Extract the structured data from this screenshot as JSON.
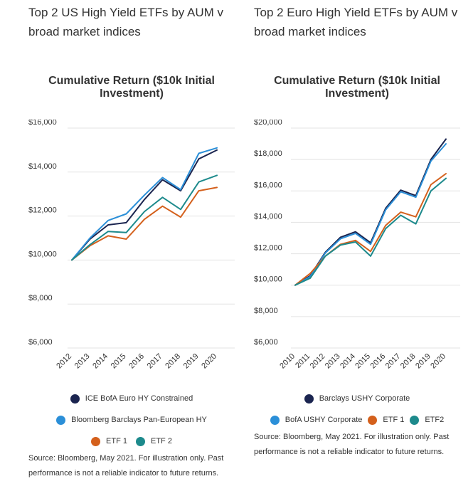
{
  "left": {
    "heading": "Top 2 US High Yield ETFs by AUM v broad market indices",
    "source_note": "Source: Bloomberg, May 2021. For illustration only. Past performance is not a reliable indicator to future returns."
  },
  "right": {
    "heading": "Top 2 Euro High Yield ETFs by AUM v broad market indices",
    "source_note": "Source: Bloomberg, May 2021. For illustration only. Past performance is not a reliable indicator to future returns."
  },
  "chart_data": [
    {
      "type": "line",
      "title": "Cumulative Return ($10k Initial Investment)",
      "xlabel": "",
      "ylabel": "",
      "x": [
        "2012",
        "2013",
        "2014",
        "2015",
        "2016",
        "2017",
        "2018",
        "2019",
        "2020"
      ],
      "ylim": [
        6000,
        16000
      ],
      "yticks": [
        6000,
        8000,
        10000,
        12000,
        14000,
        16000
      ],
      "ytick_labels": [
        "$6,000",
        "$8,000",
        "$10,000",
        "$12,000",
        "$14,000",
        "$16,000"
      ],
      "grid": true,
      "legend_position": "bottom",
      "series": [
        {
          "name": "ICE BofA Euro HY Constrained",
          "color": "#1b2550",
          "values": [
            10000,
            10950,
            11600,
            11700,
            12750,
            13650,
            13150,
            14600,
            15000
          ]
        },
        {
          "name": "Bloomberg Barclays Pan-European HY",
          "color": "#2b8fd8",
          "values": [
            10000,
            11000,
            11800,
            12100,
            12950,
            13750,
            13200,
            14850,
            15100
          ]
        },
        {
          "name": "ETF 1",
          "color": "#d4601c",
          "values": [
            10000,
            10650,
            11100,
            10950,
            11850,
            12450,
            11950,
            13150,
            13300
          ]
        },
        {
          "name": "ETF 2",
          "color": "#1d8a8c",
          "values": [
            10000,
            10700,
            11300,
            11250,
            12200,
            12850,
            12300,
            13550,
            13850
          ]
        }
      ]
    },
    {
      "type": "line",
      "title": "Cumulative Return ($10k Initial Investment)",
      "xlabel": "",
      "ylabel": "",
      "x": [
        "2010",
        "2011",
        "2012",
        "2013",
        "2014",
        "2015",
        "2016",
        "2017",
        "2018",
        "2019",
        "2020"
      ],
      "ylim": [
        6000,
        20000
      ],
      "yticks": [
        6000,
        8000,
        10000,
        12000,
        14000,
        16000,
        18000,
        20000
      ],
      "ytick_labels": [
        "$6,000",
        "$8,000",
        "$10,000",
        "$12,000",
        "$14,000",
        "$16,000",
        "$18,000",
        "$20,000"
      ],
      "grid": true,
      "legend_position": "bottom",
      "series": [
        {
          "name": "Barclays USHY Corporate",
          "color": "#1b2550",
          "values": [
            10000,
            10600,
            12100,
            13050,
            13400,
            12700,
            14900,
            16050,
            15700,
            18000,
            19300
          ]
        },
        {
          "name": "BofA USHY Corporate",
          "color": "#2b8fd8",
          "values": [
            10000,
            10550,
            12050,
            12950,
            13300,
            12600,
            14800,
            15950,
            15600,
            17900,
            19000
          ]
        },
        {
          "name": "ETF 1",
          "color": "#d4601c",
          "values": [
            10000,
            10750,
            11850,
            12600,
            12850,
            12150,
            13800,
            14650,
            14350,
            16400,
            17100
          ]
        },
        {
          "name": "ETF2",
          "color": "#1d8a8c",
          "values": [
            10000,
            10450,
            11850,
            12550,
            12750,
            11850,
            13600,
            14450,
            13900,
            16000,
            16800
          ]
        }
      ]
    }
  ]
}
